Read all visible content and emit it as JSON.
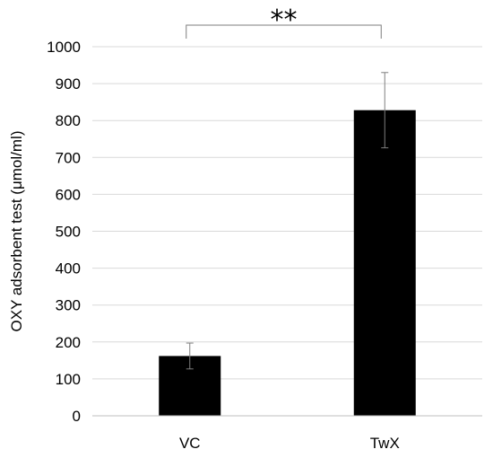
{
  "chart_data": {
    "type": "bar",
    "title": "",
    "xlabel": "",
    "ylabel": "OXY adsorbent test  (μmol/ml)",
    "categories": [
      "VC",
      "TwX"
    ],
    "values": [
      162,
      828
    ],
    "error": [
      35,
      102
    ],
    "ylim": [
      0,
      1000
    ],
    "yticks": [
      0,
      100,
      200,
      300,
      400,
      500,
      600,
      700,
      800,
      900,
      1000
    ],
    "grid": "y-major",
    "bar_color": "#000000",
    "grid_color": "#d9d9d9",
    "significance": {
      "label": "**",
      "from": "VC",
      "to": "TwX"
    }
  }
}
